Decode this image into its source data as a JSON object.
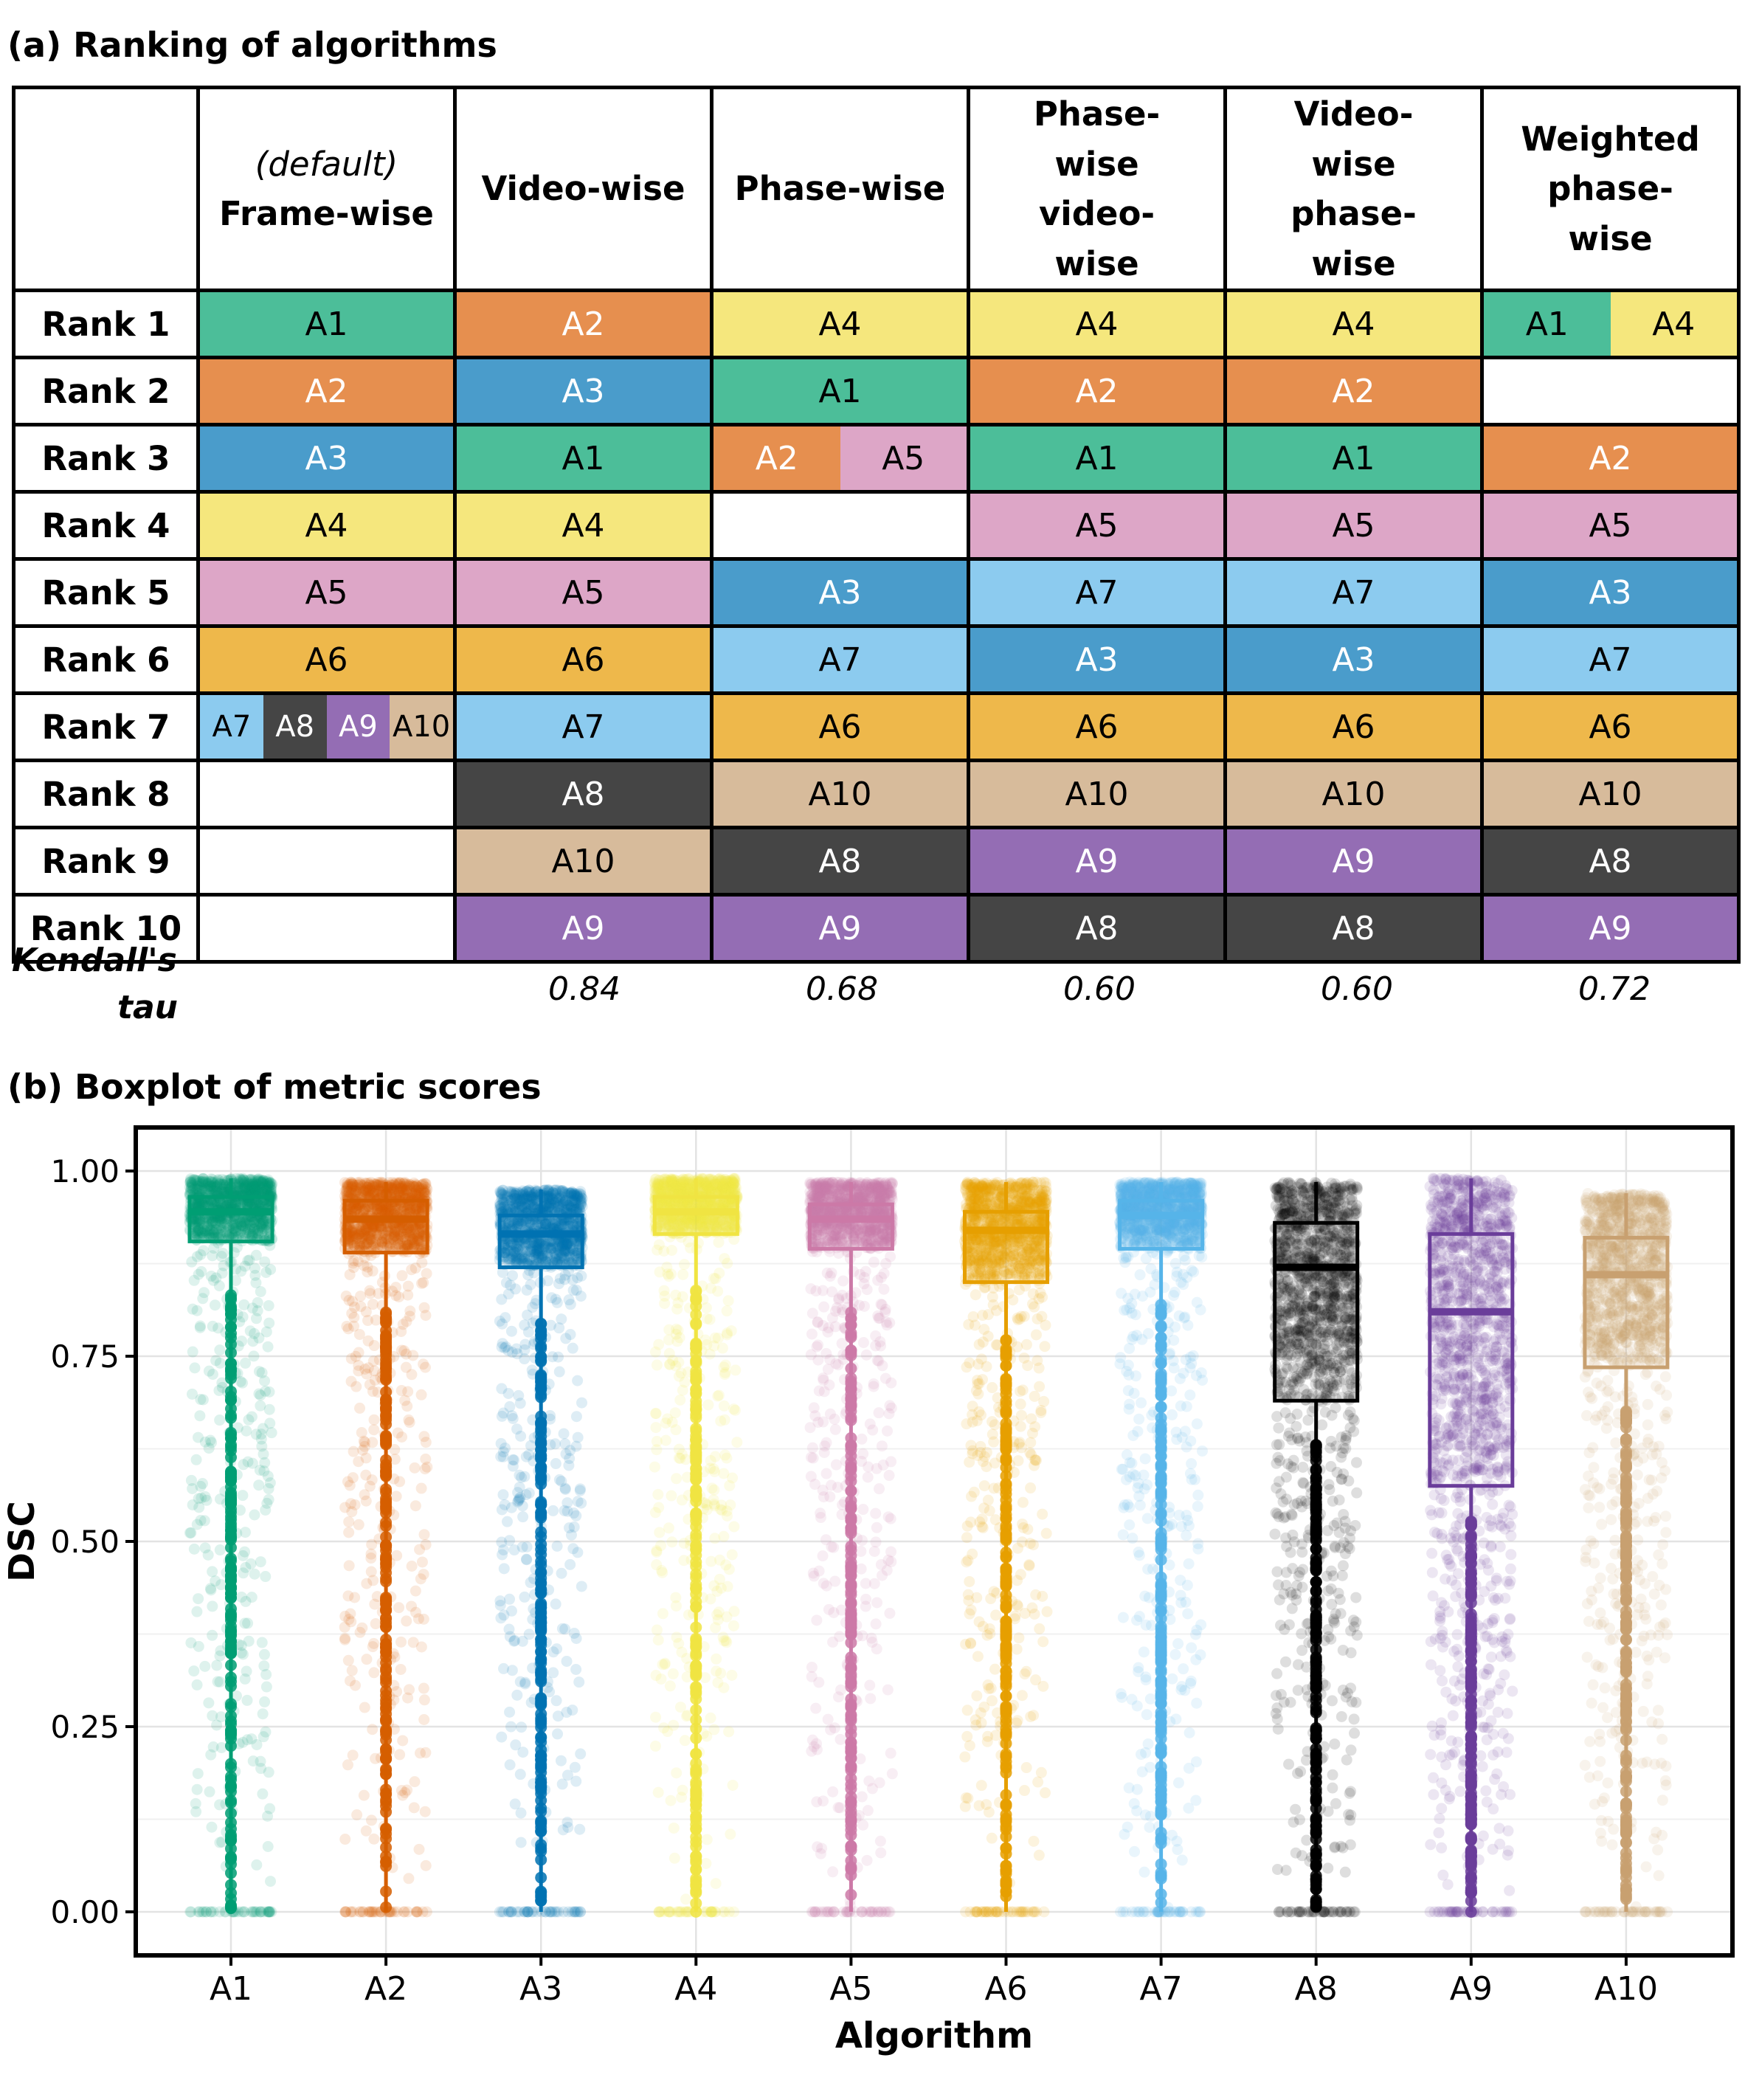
{
  "panel_a": {
    "title": "(a) Ranking of algorithms",
    "columns": [
      {
        "note": "(default)",
        "label": "Frame-wise"
      },
      {
        "note": "",
        "label": "Video-wise"
      },
      {
        "note": "",
        "label": "Phase-wise"
      },
      {
        "note": "",
        "label": "Phase-wise video-wise"
      },
      {
        "note": "",
        "label": "Video-wise phase-wise"
      },
      {
        "note": "",
        "label": "Weighted phase-wise"
      }
    ],
    "rank_labels": [
      "Rank 1",
      "Rank 2",
      "Rank 3",
      "Rank 4",
      "Rank 5",
      "Rank 6",
      "Rank 7",
      "Rank 8",
      "Rank 9",
      "Rank 10"
    ],
    "rankings": [
      [
        [
          "A1"
        ],
        [
          "A2"
        ],
        [
          "A3"
        ],
        [
          "A4"
        ],
        [
          "A5"
        ],
        [
          "A6"
        ],
        [
          "A7",
          "A8",
          "A9",
          "A10"
        ],
        [],
        [],
        []
      ],
      [
        [
          "A2"
        ],
        [
          "A3"
        ],
        [
          "A1"
        ],
        [
          "A4"
        ],
        [
          "A5"
        ],
        [
          "A6"
        ],
        [
          "A7"
        ],
        [
          "A8"
        ],
        [
          "A10"
        ],
        [
          "A9"
        ]
      ],
      [
        [
          "A4"
        ],
        [
          "A1"
        ],
        [
          "A2",
          "A5"
        ],
        [],
        [
          "A3"
        ],
        [
          "A7"
        ],
        [
          "A6"
        ],
        [
          "A10"
        ],
        [
          "A8"
        ],
        [
          "A9"
        ]
      ],
      [
        [
          "A4"
        ],
        [
          "A2"
        ],
        [
          "A1"
        ],
        [
          "A5"
        ],
        [
          "A7"
        ],
        [
          "A3"
        ],
        [
          "A6"
        ],
        [
          "A10"
        ],
        [
          "A9"
        ],
        [
          "A8"
        ]
      ],
      [
        [
          "A4"
        ],
        [
          "A2"
        ],
        [
          "A1"
        ],
        [
          "A5"
        ],
        [
          "A7"
        ],
        [
          "A3"
        ],
        [
          "A6"
        ],
        [
          "A10"
        ],
        [
          "A9"
        ],
        [
          "A8"
        ]
      ],
      [
        [
          "A1",
          "A4"
        ],
        [],
        [
          "A2"
        ],
        [
          "A5"
        ],
        [
          "A3"
        ],
        [
          "A7"
        ],
        [
          "A6"
        ],
        [
          "A10"
        ],
        [
          "A8"
        ],
        [
          "A9"
        ]
      ]
    ],
    "kendall_label_1": "Kendall's",
    "kendall_label_2": "tau",
    "kendall_tau": [
      "",
      "0.84",
      "0.68",
      "0.60",
      "0.60",
      "0.72"
    ]
  },
  "algo_cell_colors": {
    "A1": {
      "bg": "#4cbe99",
      "fg": "#000000"
    },
    "A2": {
      "bg": "#e68f4f",
      "fg": "#ffffff"
    },
    "A3": {
      "bg": "#4a9ccb",
      "fg": "#ffffff"
    },
    "A4": {
      "bg": "#f5e77d",
      "fg": "#000000"
    },
    "A5": {
      "bg": "#dda6c7",
      "fg": "#000000"
    },
    "A6": {
      "bg": "#eeb84b",
      "fg": "#000000"
    },
    "A7": {
      "bg": "#8ccbef",
      "fg": "#000000"
    },
    "A8": {
      "bg": "#454545",
      "fg": "#ffffff"
    },
    "A9": {
      "bg": "#946db4",
      "fg": "#ffffff"
    },
    "A10": {
      "bg": "#d7bb9b",
      "fg": "#000000"
    }
  },
  "panel_b": {
    "title": "(b) Boxplot of metric scores"
  },
  "chart_data": {
    "type": "boxplot",
    "xlabel": "Algorithm",
    "ylabel": "DSC",
    "ylim": [
      0,
      1
    ],
    "yticks": [
      0,
      0.25,
      0.5,
      0.75,
      1.0
    ],
    "ytick_labels": [
      "0.00",
      "0.25",
      "0.50",
      "0.75",
      "1.00"
    ],
    "grid": true,
    "categories": [
      "A1",
      "A2",
      "A3",
      "A4",
      "A5",
      "A6",
      "A7",
      "A8",
      "A9",
      "A10"
    ],
    "colors": [
      "#009e73",
      "#d55e00",
      "#0072b2",
      "#f0e442",
      "#cc79a7",
      "#e69f00",
      "#56b4e9",
      "#000000",
      "#6a3d9a",
      "#c8a070"
    ],
    "boxes": [
      {
        "q1": 0.905,
        "median": 0.945,
        "q3": 0.965,
        "whisker_low": 0.0,
        "whisker_high": 0.99
      },
      {
        "q1": 0.89,
        "median": 0.935,
        "q3": 0.96,
        "whisker_low": 0.0,
        "whisker_high": 0.985
      },
      {
        "q1": 0.87,
        "median": 0.915,
        "q3": 0.94,
        "whisker_low": 0.0,
        "whisker_high": 0.975
      },
      {
        "q1": 0.915,
        "median": 0.945,
        "q3": 0.965,
        "whisker_low": 0.0,
        "whisker_high": 0.99
      },
      {
        "q1": 0.895,
        "median": 0.935,
        "q3": 0.955,
        "whisker_low": 0.0,
        "whisker_high": 0.985
      },
      {
        "q1": 0.85,
        "median": 0.92,
        "q3": 0.945,
        "whisker_low": 0.0,
        "whisker_high": 0.985
      },
      {
        "q1": 0.895,
        "median": 0.94,
        "q3": 0.96,
        "whisker_low": 0.0,
        "whisker_high": 0.985
      },
      {
        "q1": 0.69,
        "median": 0.87,
        "q3": 0.93,
        "whisker_low": 0.0,
        "whisker_high": 0.985
      },
      {
        "q1": 0.575,
        "median": 0.81,
        "q3": 0.915,
        "whisker_low": 0.0,
        "whisker_high": 0.99
      },
      {
        "q1": 0.735,
        "median": 0.86,
        "q3": 0.91,
        "whisker_low": 0.0,
        "whisker_high": 0.97
      }
    ]
  }
}
